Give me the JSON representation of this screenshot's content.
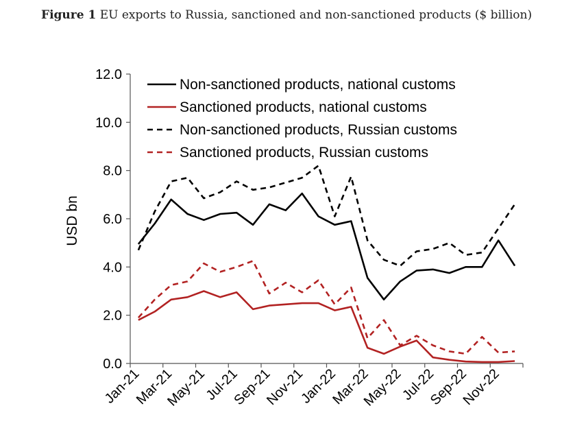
{
  "caption": {
    "prefix": "Figure 1",
    "text": "EU exports to Russia, sanctioned and non-sanctioned products ($ billion)"
  },
  "chart_data": {
    "type": "line",
    "title": "",
    "xlabel": "",
    "ylabel": "USD bn",
    "ylim": [
      0,
      12
    ],
    "yticks": [
      "0.0",
      "2.0",
      "4.0",
      "6.0",
      "8.0",
      "10.0",
      "12.0"
    ],
    "x": [
      "Jan-21",
      "Feb-21",
      "Mar-21",
      "Apr-21",
      "May-21",
      "Jun-21",
      "Jul-21",
      "Aug-21",
      "Sep-21",
      "Oct-21",
      "Nov-21",
      "Dec-21",
      "Jan-22",
      "Feb-22",
      "Mar-22",
      "Apr-22",
      "May-22",
      "Jun-22",
      "Jul-22",
      "Aug-22",
      "Sep-22",
      "Oct-22",
      "Nov-22",
      "Dec-22"
    ],
    "xtick_labels": [
      "Jan-21",
      "Mar-21",
      "May-21",
      "Jul-21",
      "Sep-21",
      "Nov-21",
      "Jan-22",
      "Mar-22",
      "May-22",
      "Jul-22",
      "Sep-22",
      "Nov-22"
    ],
    "legend_position": "top",
    "series": [
      {
        "name": "Non-sanctioned products, national customs",
        "color": "#000000",
        "dash": "solid",
        "values": [
          4.95,
          5.8,
          6.8,
          6.2,
          5.95,
          6.2,
          6.25,
          5.75,
          6.6,
          6.35,
          7.05,
          6.1,
          5.75,
          5.9,
          3.55,
          2.65,
          3.4,
          3.85,
          3.9,
          3.75,
          4.0,
          4.0,
          5.1,
          4.05
        ]
      },
      {
        "name": "Sanctioned products, national customs",
        "color": "#b22222",
        "dash": "solid",
        "values": [
          1.8,
          2.15,
          2.65,
          2.75,
          3.0,
          2.75,
          2.95,
          2.25,
          2.4,
          2.45,
          2.5,
          2.5,
          2.2,
          2.35,
          0.65,
          0.4,
          0.7,
          0.95,
          0.25,
          0.15,
          0.08,
          0.06,
          0.06,
          0.1
        ]
      },
      {
        "name": "Non-sanctioned products, Russian customs",
        "color": "#000000",
        "dash": "dashed",
        "values": [
          4.7,
          6.3,
          7.55,
          7.7,
          6.85,
          7.1,
          7.55,
          7.2,
          7.3,
          7.5,
          7.7,
          8.2,
          6.1,
          7.75,
          5.1,
          4.3,
          4.05,
          4.65,
          4.75,
          5.0,
          4.5,
          4.6,
          5.6,
          6.6
        ]
      },
      {
        "name": "Sanctioned products, Russian customs",
        "color": "#b22222",
        "dash": "dashed",
        "values": [
          1.9,
          2.65,
          3.25,
          3.4,
          4.15,
          3.8,
          4.0,
          4.25,
          2.9,
          3.35,
          2.95,
          3.45,
          2.45,
          3.15,
          1.05,
          1.8,
          0.75,
          1.15,
          0.75,
          0.5,
          0.4,
          1.1,
          0.45,
          0.5
        ]
      }
    ]
  }
}
